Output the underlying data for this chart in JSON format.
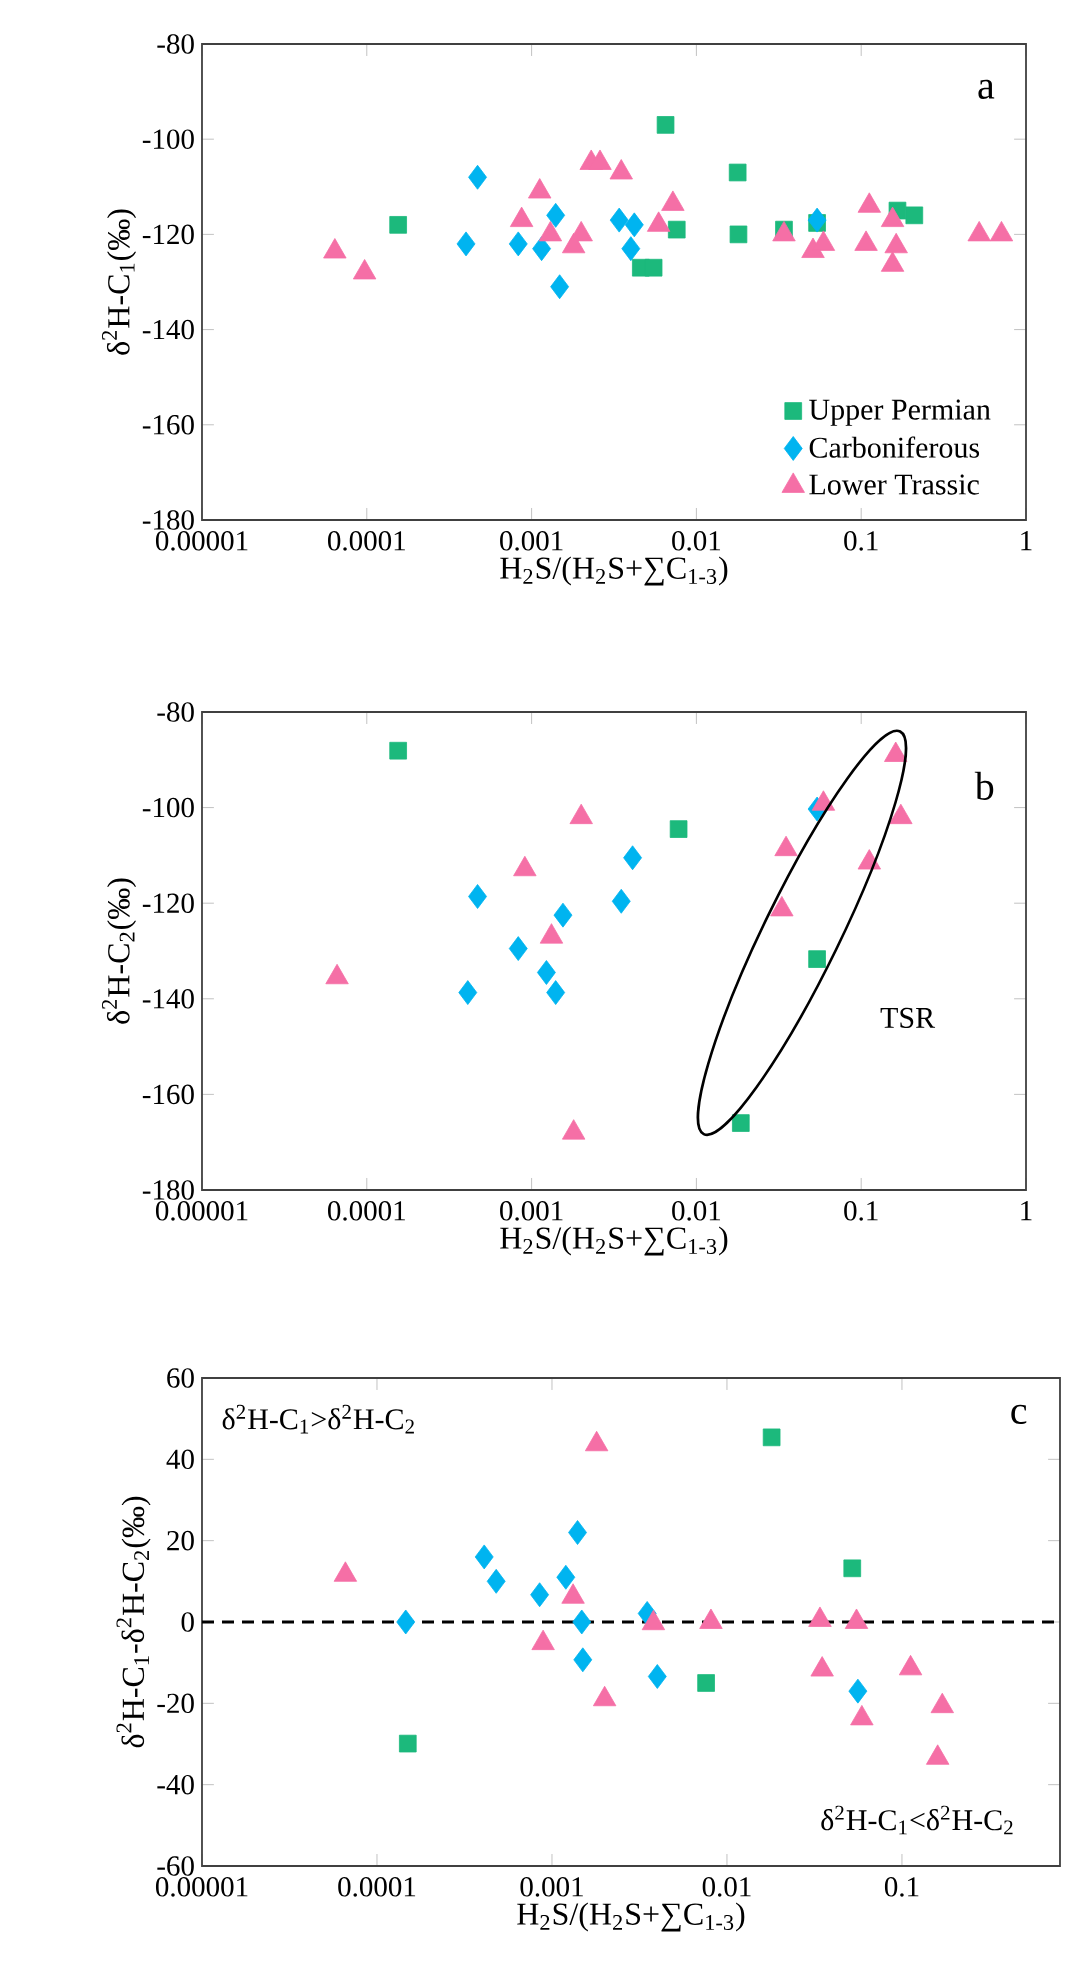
{
  "chart_data": [
    {
      "type": "scatter",
      "annotations": [
        "a"
      ],
      "xlabel": "H$_{2}$S/(H$_{2}$S+∑C$_{1-3}$)",
      "ylabel": "δ$^{2}$H-C$_{1}$(‰)",
      "log": "x",
      "legend": "bottom right",
      "xlim": [
        1e-05,
        1
      ],
      "ylim": [
        -180,
        -80
      ],
      "xticks": [
        {
          "value": 1e-05,
          "label": "0.00001"
        },
        {
          "value": 0.0001,
          "label": "0.0001"
        },
        {
          "value": 0.001,
          "label": "0.001"
        },
        {
          "value": 0.01,
          "label": "0.01"
        },
        {
          "value": 0.1,
          "label": "0.1"
        },
        {
          "value": 1,
          "label": "1"
        }
      ],
      "yticks": [
        -180,
        -160,
        -140,
        -120,
        -100,
        -80
      ],
      "series": [
        {
          "name": "Upper Permian",
          "color": "#1cb97c",
          "marker": "square",
          "x": [
            0.000155,
            0.0065,
            0.0178,
            0.0046,
            0.0055,
            0.0076,
            0.018,
            0.034,
            0.054,
            0.166,
            0.21
          ],
          "values": [
            -118,
            -97,
            -107,
            -127,
            -127,
            -119,
            -120,
            -119,
            -117.6,
            -115,
            -116
          ]
        },
        {
          "name": "Carboniferous",
          "color": "#00b4f0",
          "marker": "diamond",
          "x": [
            0.00047,
            0.0004,
            0.00083,
            0.00115,
            0.0014,
            0.00148,
            0.0034,
            0.0042,
            0.004,
            0.054
          ],
          "values": [
            -108,
            -122,
            -122,
            -123,
            -116,
            -131,
            -117,
            -118,
            -123,
            -117
          ]
        },
        {
          "name": "Lower Trassic",
          "color": "#f56fa6",
          "marker": "triangle",
          "x": [
            6.4e-05,
            9.7e-05,
            0.00112,
            0.00087,
            0.0013,
            0.0018,
            0.002,
            0.0023,
            0.0026,
            0.0035,
            0.0072,
            0.0059,
            0.034,
            0.051,
            0.059,
            0.112,
            0.107,
            0.155,
            0.163,
            0.155,
            0.52,
            0.71
          ],
          "values": [
            -123.6,
            -128,
            -111,
            -117,
            -120,
            -122.5,
            -120,
            -105,
            -105,
            -107,
            -113.6,
            -118,
            -120,
            -123.5,
            -122,
            -114,
            -122,
            -117,
            -122.5,
            -126.4,
            -120,
            -120
          ]
        }
      ]
    },
    {
      "type": "scatter",
      "annotations": [
        "b",
        "TSR"
      ],
      "xlabel": "H$_{2}$S/(H$_{2}$S+∑C$_{1-3}$)",
      "ylabel": "δ$^{2}$H-C$_{2}$(‰)",
      "log": "x",
      "xlim": [
        1e-05,
        1
      ],
      "ylim": [
        -180,
        -80
      ],
      "xticks": [
        {
          "value": 1e-05,
          "label": "0.00001"
        },
        {
          "value": 0.0001,
          "label": "0.0001"
        },
        {
          "value": 0.001,
          "label": "0.001"
        },
        {
          "value": 0.01,
          "label": "0.01"
        },
        {
          "value": 0.1,
          "label": "0.1"
        },
        {
          "value": 1,
          "label": "1"
        }
      ],
      "yticks": [
        -180,
        -160,
        -140,
        -120,
        -100,
        -80
      ],
      "series": [
        {
          "color": "#1cb97c",
          "marker": "square",
          "x": [
            0.000155,
            0.0078,
            0.054,
            0.0186
          ],
          "values": [
            -88.1,
            -104.5,
            -131.7,
            -166
          ]
        },
        {
          "color": "#00b4f0",
          "marker": "diamond",
          "x": [
            0.00047,
            0.00083,
            0.00041,
            0.00123,
            0.0014,
            0.00155,
            0.0035,
            0.0041,
            0.054
          ],
          "values": [
            -118.6,
            -129.5,
            -138.7,
            -134.5,
            -138.7,
            -122.5,
            -119.6,
            -110.5,
            -100.3
          ]
        },
        {
          "color": "#f56fa6",
          "marker": "triangle",
          "x": [
            6.6e-05,
            0.00091,
            0.00132,
            0.002,
            0.0018,
            0.035,
            0.033,
            0.059,
            0.112,
            0.162,
            0.174
          ],
          "values": [
            -135.5,
            -112.9,
            -127,
            -102,
            -168,
            -108.7,
            -121.3,
            -99.2,
            -111.5,
            -89,
            -102
          ]
        }
      ]
    },
    {
      "type": "scatter",
      "annotations": [
        "c",
        "δ$^{2}$H-C$_{1}$>δ$^{2}$H-C$_{2}$",
        "δ$^{2}$H-C$_{1}$<δ$^{2}$H-C$_{2}$"
      ],
      "xlabel": "H$_{2}$S/(H$_{2}$S+∑C$_{1-3}$)",
      "ylabel": "δ$^{2}$H-C$_{1}$-δ$^{2}$H-C$_{2}$(‰)",
      "log": "x",
      "xlim": [
        1e-05,
        0.8
      ],
      "ylim": [
        -60,
        60
      ],
      "xticks": [
        {
          "value": 1e-05,
          "label": "0.00001"
        },
        {
          "value": 0.0001,
          "label": "0.0001"
        },
        {
          "value": 0.001,
          "label": "0.001"
        },
        {
          "value": 0.01,
          "label": "0.01"
        },
        {
          "value": 0.1,
          "label": "0.1"
        }
      ],
      "yticks": [
        -60,
        -40,
        -20,
        0,
        20,
        40,
        60
      ],
      "ref_lines": [
        {
          "axis": "y",
          "value": 0,
          "line_style": "dashed",
          "color": "#000000"
        }
      ],
      "series": [
        {
          "color": "#1cb97c",
          "marker": "square",
          "x": [
            0.018,
            0.052,
            0.0076,
            0.00015
          ],
          "values": [
            45.4,
            13.2,
            -15,
            -29.9
          ]
        },
        {
          "color": "#00b4f0",
          "marker": "diamond",
          "x": [
            0.000146,
            0.00041,
            0.00048,
            0.00085,
            0.0012,
            0.0014,
            0.00148,
            0.0015,
            0.0035,
            0.004,
            0.056
          ],
          "values": [
            0,
            16,
            10,
            6.7,
            11,
            22,
            0,
            -9.3,
            2.1,
            -13.4,
            -17
          ]
        },
        {
          "color": "#f56fa6",
          "marker": "triangle",
          "x": [
            6.6e-05,
            0.00089,
            0.00132,
            0.0018,
            0.002,
            0.0038,
            0.0081,
            0.034,
            0.035,
            0.055,
            0.059,
            0.112,
            0.17,
            0.16
          ],
          "values": [
            11.6,
            -5.2,
            6.2,
            43.7,
            -19,
            -0.3,
            0,
            0.5,
            -11.7,
            0,
            -23.7,
            -11.4,
            -20.7,
            -33.4
          ]
        }
      ]
    }
  ]
}
